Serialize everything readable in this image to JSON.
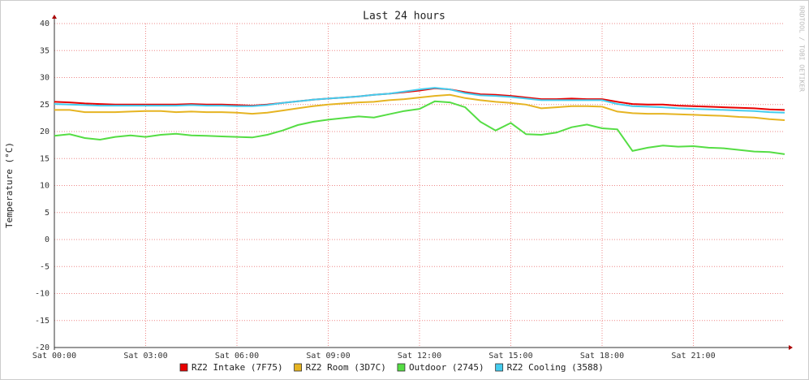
{
  "chart_data": {
    "type": "line",
    "title": "Last 24 hours",
    "y_label": "Temperature (°C)",
    "watermark": "RRDTOOL / TOBI OETIKER",
    "x": [
      0,
      0.5,
      1,
      1.5,
      2,
      2.5,
      3,
      3.5,
      4,
      4.5,
      5,
      5.5,
      6,
      6.5,
      7,
      7.5,
      8,
      8.5,
      9,
      9.5,
      10,
      10.5,
      11,
      11.5,
      12,
      12.5,
      13,
      13.5,
      14,
      14.5,
      15,
      15.5,
      16,
      16.5,
      17,
      17.5,
      18,
      18.5,
      19,
      19.5,
      20,
      20.5,
      21,
      21.5,
      22,
      22.5,
      23,
      23.5,
      24
    ],
    "xlim": [
      0,
      24
    ],
    "xticks": [
      {
        "value": 0,
        "label": "Sat 00:00"
      },
      {
        "value": 3,
        "label": "Sat 03:00"
      },
      {
        "value": 6,
        "label": "Sat 06:00"
      },
      {
        "value": 9,
        "label": "Sat 09:00"
      },
      {
        "value": 12,
        "label": "Sat 12:00"
      },
      {
        "value": 15,
        "label": "Sat 15:00"
      },
      {
        "value": 18,
        "label": "Sat 18:00"
      },
      {
        "value": 21,
        "label": "Sat 21:00"
      }
    ],
    "ylim": [
      -20,
      40
    ],
    "yticks": [
      -20,
      -15,
      -10,
      -5,
      0,
      5,
      10,
      15,
      20,
      25,
      30,
      35,
      40
    ],
    "grid": true,
    "series": [
      {
        "name": "RZ2 Intake (7F75)",
        "color": "#e80000",
        "values": [
          25.5,
          25.4,
          25.2,
          25.1,
          25,
          25,
          25,
          25,
          25,
          25.1,
          25,
          25,
          24.9,
          24.8,
          25,
          25.3,
          25.6,
          25.9,
          26.1,
          26.3,
          26.5,
          26.8,
          27,
          27.3,
          27.6,
          28,
          27.8,
          27.3,
          26.9,
          26.8,
          26.6,
          26.3,
          26,
          26,
          26.1,
          26,
          26,
          25.5,
          25.1,
          25,
          25,
          24.8,
          24.7,
          24.6,
          24.5,
          24.4,
          24.3,
          24.1,
          24
        ]
      },
      {
        "name": "RZ2 Room (3D7C)",
        "color": "#e6b422",
        "values": [
          24,
          24,
          23.6,
          23.6,
          23.6,
          23.7,
          23.8,
          23.8,
          23.6,
          23.7,
          23.6,
          23.6,
          23.5,
          23.3,
          23.5,
          23.9,
          24.3,
          24.7,
          25,
          25.2,
          25.4,
          25.5,
          25.8,
          26,
          26.3,
          26.6,
          26.8,
          26.2,
          25.8,
          25.5,
          25.3,
          25,
          24.3,
          24.5,
          24.7,
          24.7,
          24.6,
          23.7,
          23.4,
          23.3,
          23.3,
          23.2,
          23.1,
          23,
          22.9,
          22.7,
          22.6,
          22.3,
          22.1
        ]
      },
      {
        "name": "Outdoor (2745)",
        "color": "#55dd44",
        "values": [
          19.2,
          19.5,
          18.8,
          18.5,
          19,
          19.3,
          19,
          19.4,
          19.6,
          19.3,
          19.2,
          19.1,
          19,
          18.9,
          19.4,
          20.2,
          21.2,
          21.8,
          22.2,
          22.5,
          22.8,
          22.6,
          23.2,
          23.8,
          24.2,
          25.6,
          25.4,
          24.5,
          21.8,
          20.2,
          21.6,
          19.5,
          19.4,
          19.8,
          20.8,
          21.3,
          20.6,
          20.4,
          16.4,
          17,
          17.4,
          17.2,
          17.3,
          17,
          16.9,
          16.6,
          16.3,
          16.2,
          15.8
        ]
      },
      {
        "name": "RZ2 Cooling (3588)",
        "color": "#44ccee",
        "values": [
          25.1,
          25,
          24.9,
          24.8,
          24.8,
          24.8,
          24.8,
          24.8,
          24.8,
          24.9,
          24.8,
          24.8,
          24.7,
          24.7,
          24.9,
          25.3,
          25.6,
          25.9,
          26.1,
          26.3,
          26.5,
          26.8,
          27,
          27.4,
          27.8,
          28.1,
          27.8,
          27.1,
          26.7,
          26.6,
          26.4,
          26.1,
          25.8,
          25.8,
          25.8,
          25.8,
          25.8,
          25.1,
          24.7,
          24.6,
          24.5,
          24.3,
          24.2,
          24.1,
          24,
          23.9,
          23.8,
          23.6,
          23.5
        ]
      }
    ]
  }
}
